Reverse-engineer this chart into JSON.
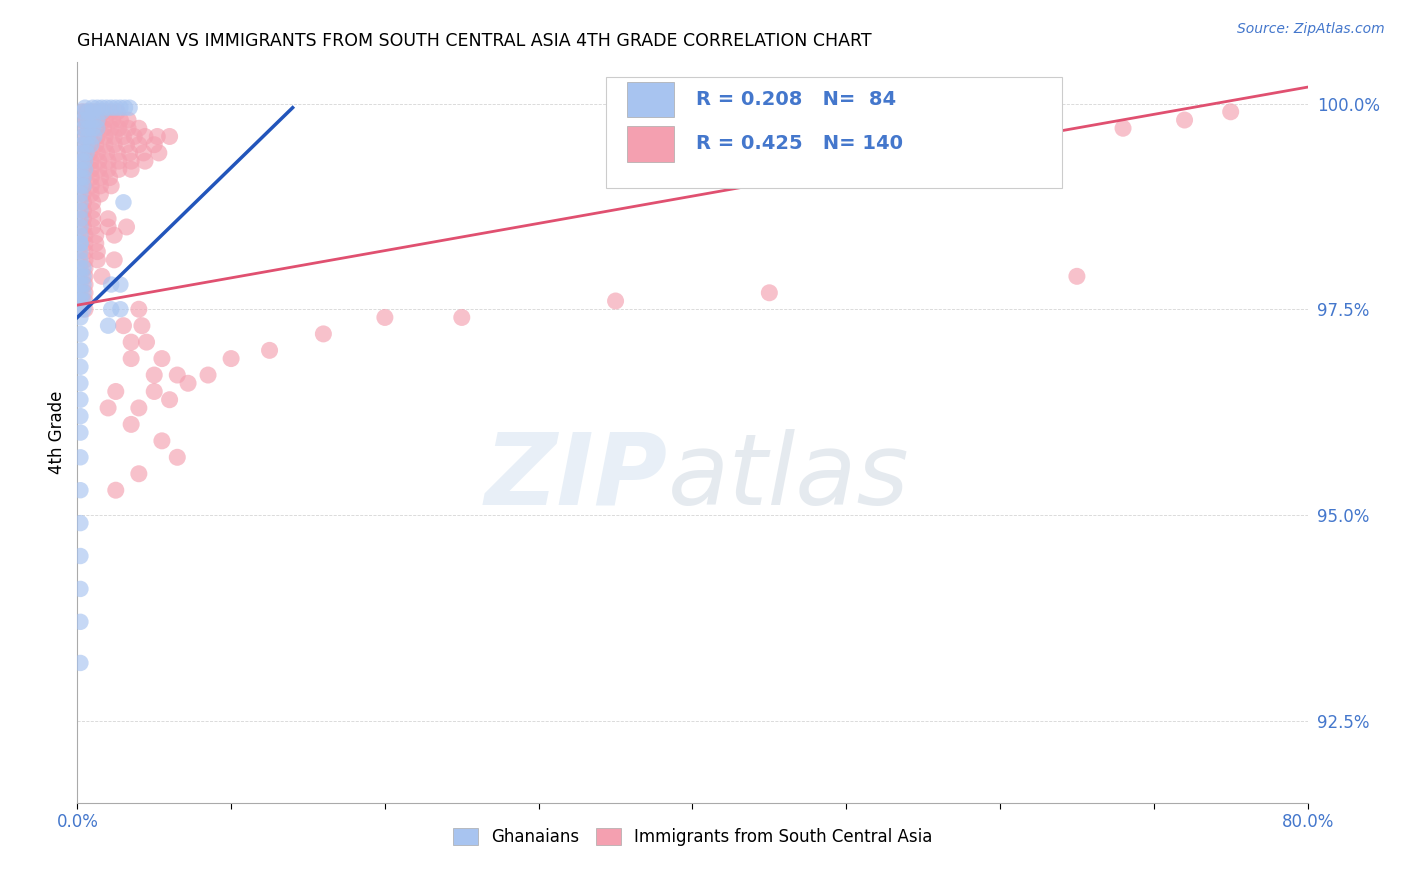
{
  "title": "GHANAIAN VS IMMIGRANTS FROM SOUTH CENTRAL ASIA 4TH GRADE CORRELATION CHART",
  "source": "Source: ZipAtlas.com",
  "ylabel": "4th Grade",
  "xlim": [
    0.0,
    0.8
  ],
  "ylim": [
    0.915,
    1.005
  ],
  "xtick_vals": [
    0.0,
    0.1,
    0.2,
    0.3,
    0.4,
    0.5,
    0.6,
    0.7,
    0.8
  ],
  "xticklabels": [
    "0.0%",
    "",
    "",
    "",
    "",
    "",
    "",
    "",
    "80.0%"
  ],
  "ytick_vals": [
    0.925,
    0.95,
    0.975,
    1.0
  ],
  "yticklabels": [
    "92.5%",
    "95.0%",
    "97.5%",
    "100.0%"
  ],
  "blue_R": 0.208,
  "blue_N": 84,
  "pink_R": 0.425,
  "pink_N": 140,
  "blue_color": "#A8C4F0",
  "pink_color": "#F4A0B0",
  "trendline_blue": "#2255BB",
  "trendline_pink": "#E05070",
  "watermark_zip": "ZIP",
  "watermark_atlas": "atlas",
  "legend_label_blue": "Ghanaians",
  "legend_label_pink": "Immigrants from South Central Asia",
  "blue_trend_x": [
    0.0,
    0.14
  ],
  "blue_trend_y": [
    0.974,
    0.9995
  ],
  "pink_trend_x": [
    0.0,
    0.8
  ],
  "pink_trend_y": [
    0.9755,
    1.002
  ],
  "blue_points": [
    [
      0.005,
      0.9995
    ],
    [
      0.01,
      0.9995
    ],
    [
      0.013,
      0.9995
    ],
    [
      0.016,
      0.9995
    ],
    [
      0.019,
      0.9995
    ],
    [
      0.022,
      0.9995
    ],
    [
      0.025,
      0.9995
    ],
    [
      0.028,
      0.9995
    ],
    [
      0.031,
      0.9995
    ],
    [
      0.034,
      0.9995
    ],
    [
      0.004,
      0.999
    ],
    [
      0.007,
      0.999
    ],
    [
      0.01,
      0.999
    ],
    [
      0.016,
      0.999
    ],
    [
      0.004,
      0.998
    ],
    [
      0.007,
      0.998
    ],
    [
      0.01,
      0.998
    ],
    [
      0.013,
      0.998
    ],
    [
      0.004,
      0.997
    ],
    [
      0.007,
      0.997
    ],
    [
      0.01,
      0.997
    ],
    [
      0.013,
      0.997
    ],
    [
      0.004,
      0.996
    ],
    [
      0.007,
      0.996
    ],
    [
      0.011,
      0.996
    ],
    [
      0.003,
      0.995
    ],
    [
      0.006,
      0.995
    ],
    [
      0.009,
      0.995
    ],
    [
      0.003,
      0.994
    ],
    [
      0.006,
      0.994
    ],
    [
      0.003,
      0.993
    ],
    [
      0.005,
      0.993
    ],
    [
      0.002,
      0.992
    ],
    [
      0.005,
      0.992
    ],
    [
      0.002,
      0.991
    ],
    [
      0.004,
      0.991
    ],
    [
      0.002,
      0.99
    ],
    [
      0.004,
      0.99
    ],
    [
      0.002,
      0.989
    ],
    [
      0.002,
      0.988
    ],
    [
      0.03,
      0.988
    ],
    [
      0.002,
      0.987
    ],
    [
      0.002,
      0.986
    ],
    [
      0.002,
      0.985
    ],
    [
      0.002,
      0.984
    ],
    [
      0.002,
      0.983
    ],
    [
      0.002,
      0.983
    ],
    [
      0.002,
      0.982
    ],
    [
      0.002,
      0.981
    ],
    [
      0.002,
      0.98
    ],
    [
      0.004,
      0.98
    ],
    [
      0.002,
      0.979
    ],
    [
      0.004,
      0.979
    ],
    [
      0.002,
      0.978
    ],
    [
      0.004,
      0.978
    ],
    [
      0.002,
      0.977
    ],
    [
      0.004,
      0.977
    ],
    [
      0.002,
      0.976
    ],
    [
      0.004,
      0.976
    ],
    [
      0.002,
      0.975
    ],
    [
      0.004,
      0.975
    ],
    [
      0.002,
      0.974
    ],
    [
      0.002,
      0.972
    ],
    [
      0.002,
      0.97
    ],
    [
      0.002,
      0.968
    ],
    [
      0.002,
      0.966
    ],
    [
      0.002,
      0.964
    ],
    [
      0.002,
      0.962
    ],
    [
      0.002,
      0.96
    ],
    [
      0.002,
      0.957
    ],
    [
      0.002,
      0.953
    ],
    [
      0.002,
      0.949
    ],
    [
      0.002,
      0.945
    ],
    [
      0.002,
      0.941
    ],
    [
      0.002,
      0.937
    ],
    [
      0.002,
      0.932
    ],
    [
      0.022,
      0.978
    ],
    [
      0.028,
      0.978
    ],
    [
      0.022,
      0.975
    ],
    [
      0.028,
      0.975
    ],
    [
      0.02,
      0.973
    ]
  ],
  "pink_points": [
    [
      0.003,
      0.999
    ],
    [
      0.006,
      0.999
    ],
    [
      0.009,
      0.999
    ],
    [
      0.012,
      0.999
    ],
    [
      0.015,
      0.999
    ],
    [
      0.018,
      0.999
    ],
    [
      0.022,
      0.999
    ],
    [
      0.026,
      0.999
    ],
    [
      0.003,
      0.998
    ],
    [
      0.006,
      0.998
    ],
    [
      0.01,
      0.998
    ],
    [
      0.014,
      0.998
    ],
    [
      0.018,
      0.998
    ],
    [
      0.023,
      0.998
    ],
    [
      0.028,
      0.998
    ],
    [
      0.033,
      0.998
    ],
    [
      0.004,
      0.997
    ],
    [
      0.008,
      0.997
    ],
    [
      0.012,
      0.997
    ],
    [
      0.017,
      0.997
    ],
    [
      0.022,
      0.997
    ],
    [
      0.027,
      0.997
    ],
    [
      0.033,
      0.997
    ],
    [
      0.04,
      0.997
    ],
    [
      0.004,
      0.996
    ],
    [
      0.008,
      0.996
    ],
    [
      0.013,
      0.996
    ],
    [
      0.018,
      0.996
    ],
    [
      0.024,
      0.996
    ],
    [
      0.03,
      0.996
    ],
    [
      0.037,
      0.996
    ],
    [
      0.044,
      0.996
    ],
    [
      0.052,
      0.996
    ],
    [
      0.06,
      0.996
    ],
    [
      0.004,
      0.995
    ],
    [
      0.008,
      0.995
    ],
    [
      0.012,
      0.995
    ],
    [
      0.018,
      0.995
    ],
    [
      0.024,
      0.995
    ],
    [
      0.032,
      0.995
    ],
    [
      0.04,
      0.995
    ],
    [
      0.05,
      0.995
    ],
    [
      0.004,
      0.994
    ],
    [
      0.008,
      0.994
    ],
    [
      0.013,
      0.994
    ],
    [
      0.019,
      0.994
    ],
    [
      0.026,
      0.994
    ],
    [
      0.034,
      0.994
    ],
    [
      0.043,
      0.994
    ],
    [
      0.053,
      0.994
    ],
    [
      0.004,
      0.993
    ],
    [
      0.009,
      0.993
    ],
    [
      0.014,
      0.993
    ],
    [
      0.02,
      0.993
    ],
    [
      0.027,
      0.993
    ],
    [
      0.035,
      0.993
    ],
    [
      0.044,
      0.993
    ],
    [
      0.004,
      0.992
    ],
    [
      0.009,
      0.992
    ],
    [
      0.014,
      0.992
    ],
    [
      0.02,
      0.992
    ],
    [
      0.027,
      0.992
    ],
    [
      0.035,
      0.992
    ],
    [
      0.004,
      0.991
    ],
    [
      0.009,
      0.991
    ],
    [
      0.015,
      0.991
    ],
    [
      0.021,
      0.991
    ],
    [
      0.004,
      0.99
    ],
    [
      0.009,
      0.99
    ],
    [
      0.015,
      0.99
    ],
    [
      0.022,
      0.99
    ],
    [
      0.004,
      0.989
    ],
    [
      0.009,
      0.989
    ],
    [
      0.015,
      0.989
    ],
    [
      0.004,
      0.988
    ],
    [
      0.01,
      0.988
    ],
    [
      0.004,
      0.987
    ],
    [
      0.01,
      0.987
    ],
    [
      0.004,
      0.986
    ],
    [
      0.01,
      0.986
    ],
    [
      0.02,
      0.986
    ],
    [
      0.004,
      0.985
    ],
    [
      0.01,
      0.985
    ],
    [
      0.02,
      0.985
    ],
    [
      0.032,
      0.985
    ],
    [
      0.005,
      0.984
    ],
    [
      0.012,
      0.984
    ],
    [
      0.024,
      0.984
    ],
    [
      0.005,
      0.983
    ],
    [
      0.012,
      0.983
    ],
    [
      0.005,
      0.982
    ],
    [
      0.013,
      0.982
    ],
    [
      0.005,
      0.981
    ],
    [
      0.013,
      0.981
    ],
    [
      0.024,
      0.981
    ],
    [
      0.005,
      0.98
    ],
    [
      0.005,
      0.979
    ],
    [
      0.016,
      0.979
    ],
    [
      0.005,
      0.978
    ],
    [
      0.005,
      0.977
    ],
    [
      0.005,
      0.976
    ],
    [
      0.005,
      0.975
    ],
    [
      0.04,
      0.975
    ],
    [
      0.03,
      0.973
    ],
    [
      0.042,
      0.973
    ],
    [
      0.045,
      0.971
    ],
    [
      0.035,
      0.971
    ],
    [
      0.055,
      0.969
    ],
    [
      0.035,
      0.969
    ],
    [
      0.05,
      0.967
    ],
    [
      0.065,
      0.967
    ],
    [
      0.05,
      0.965
    ],
    [
      0.025,
      0.965
    ],
    [
      0.04,
      0.963
    ],
    [
      0.02,
      0.963
    ],
    [
      0.035,
      0.961
    ],
    [
      0.055,
      0.959
    ],
    [
      0.065,
      0.957
    ],
    [
      0.04,
      0.955
    ],
    [
      0.025,
      0.953
    ],
    [
      0.65,
      0.979
    ],
    [
      0.45,
      0.977
    ],
    [
      0.35,
      0.976
    ],
    [
      0.25,
      0.974
    ],
    [
      0.2,
      0.974
    ],
    [
      0.16,
      0.972
    ],
    [
      0.125,
      0.97
    ],
    [
      0.1,
      0.969
    ],
    [
      0.085,
      0.967
    ],
    [
      0.072,
      0.966
    ],
    [
      0.06,
      0.964
    ],
    [
      0.75,
      0.999
    ],
    [
      0.56,
      0.994
    ],
    [
      0.68,
      0.997
    ],
    [
      0.72,
      0.998
    ]
  ]
}
